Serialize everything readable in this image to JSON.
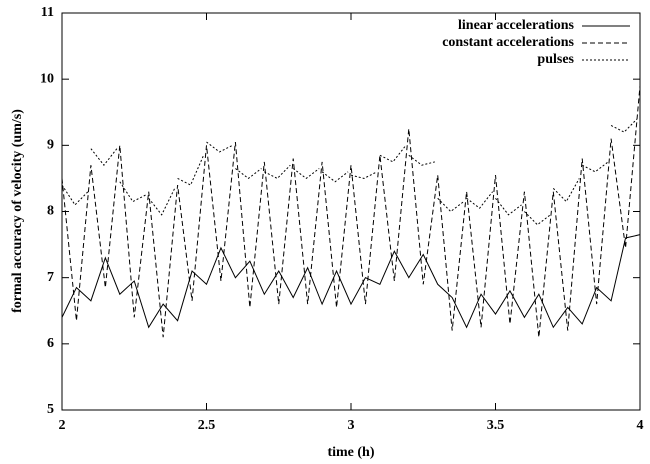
{
  "chart_data": {
    "type": "line",
    "x_label": "time (h)",
    "y_label": "formal accuracy of velocity (um/s)",
    "xlim": [
      2,
      4
    ],
    "ylim": [
      5,
      11
    ],
    "xticks": [
      2,
      2.5,
      3,
      3.5,
      4
    ],
    "yticks": [
      5,
      6,
      7,
      8,
      9,
      10,
      11
    ],
    "legend": "upper right",
    "x": [
      2.0,
      2.05,
      2.1,
      2.15,
      2.2,
      2.25,
      2.3,
      2.35,
      2.4,
      2.45,
      2.5,
      2.55,
      2.6,
      2.65,
      2.7,
      2.75,
      2.8,
      2.85,
      2.9,
      2.95,
      3.0,
      3.05,
      3.1,
      3.15,
      3.2,
      3.25,
      3.3,
      3.35,
      3.4,
      3.45,
      3.5,
      3.55,
      3.6,
      3.65,
      3.7,
      3.75,
      3.8,
      3.85,
      3.9,
      3.95,
      4.0
    ],
    "series": [
      {
        "name": "linear accelerations",
        "color": "#000000",
        "dash": "solid",
        "values": [
          6.4,
          6.85,
          6.65,
          7.3,
          6.75,
          6.95,
          6.25,
          6.6,
          6.35,
          7.1,
          6.9,
          7.45,
          7.0,
          7.25,
          6.75,
          7.1,
          6.7,
          7.15,
          6.6,
          7.1,
          6.6,
          7.0,
          6.9,
          7.4,
          7.0,
          7.35,
          6.9,
          6.7,
          6.25,
          6.75,
          6.45,
          6.8,
          6.4,
          6.75,
          6.25,
          6.55,
          6.3,
          6.85,
          6.65,
          7.6,
          7.65
        ]
      },
      {
        "name": "constant accelerations",
        "color": "#000000",
        "dash": "dashed",
        "values": [
          8.5,
          6.35,
          8.7,
          6.85,
          9.0,
          6.4,
          8.3,
          6.1,
          8.4,
          6.65,
          9.0,
          6.95,
          9.05,
          6.55,
          8.75,
          6.6,
          8.8,
          6.6,
          8.75,
          6.55,
          8.7,
          6.6,
          8.85,
          6.95,
          9.25,
          6.9,
          8.55,
          6.2,
          8.3,
          6.25,
          8.55,
          6.3,
          8.3,
          6.1,
          8.3,
          6.2,
          8.8,
          6.6,
          9.1,
          7.45,
          9.9
        ]
      },
      {
        "name": "pulses",
        "color": "#000000",
        "dash": "dotted",
        "x": [
          2.0,
          2.045,
          2.09,
          2.095,
          2.1,
          2.145,
          2.19,
          2.195,
          2.2,
          2.245,
          2.29,
          2.295,
          2.3,
          2.345,
          2.39,
          2.395,
          2.4,
          2.445,
          2.49,
          2.495,
          2.5,
          2.545,
          2.59,
          2.595,
          2.6,
          2.645,
          2.69,
          2.695,
          2.7,
          2.745,
          2.79,
          2.795,
          2.8,
          2.845,
          2.89,
          2.895,
          2.9,
          2.945,
          2.99,
          2.995,
          3.0,
          3.045,
          3.09,
          3.095,
          3.1,
          3.145,
          3.19,
          3.195,
          3.2,
          3.245,
          3.29,
          3.295,
          3.3,
          3.345,
          3.39,
          3.395,
          3.4,
          3.445,
          3.49,
          3.495,
          3.5,
          3.545,
          3.59,
          3.595,
          3.6,
          3.645,
          3.69,
          3.695,
          3.7,
          3.745,
          3.79,
          3.795,
          3.8,
          3.845,
          3.89,
          3.895,
          3.9,
          3.945,
          3.99
        ],
        "values": [
          8.4,
          8.1,
          8.3,
          null,
          8.95,
          8.7,
          8.95,
          null,
          8.45,
          8.15,
          8.25,
          null,
          8.2,
          7.95,
          8.35,
          null,
          8.5,
          8.4,
          8.85,
          null,
          9.05,
          8.9,
          9.0,
          null,
          8.65,
          8.5,
          8.65,
          null,
          8.6,
          8.5,
          8.7,
          null,
          8.65,
          8.5,
          8.65,
          null,
          8.6,
          8.45,
          8.6,
          null,
          8.55,
          8.5,
          8.6,
          null,
          8.85,
          8.75,
          9.0,
          null,
          8.85,
          8.7,
          8.75,
          null,
          8.2,
          8.0,
          8.15,
          null,
          8.2,
          8.05,
          8.3,
          null,
          8.2,
          7.95,
          8.1,
          null,
          8.0,
          7.8,
          7.95,
          null,
          8.35,
          8.15,
          8.5,
          null,
          8.7,
          8.6,
          8.75,
          null,
          9.3,
          9.2,
          9.4
        ]
      }
    ]
  }
}
